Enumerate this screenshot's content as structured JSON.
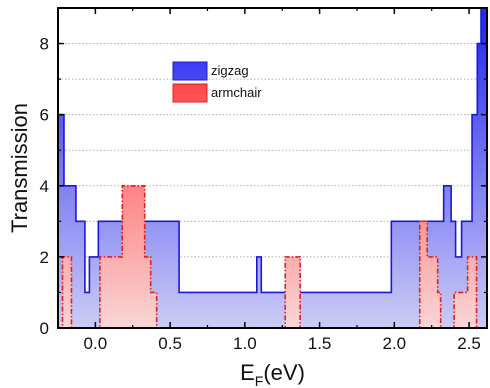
{
  "chart_data": {
    "type": "area",
    "xlabel": "E",
    "xlabel_sub": "F",
    "xlabel_suffix": "(eV)",
    "ylabel": "Transmission",
    "xlim": [
      -0.25,
      2.62
    ],
    "ylim": [
      0,
      9
    ],
    "x_ticks": [
      0.0,
      0.5,
      1.0,
      1.5,
      2.0,
      2.5
    ],
    "x_tick_labels": [
      "0.0",
      "0.5",
      "1.0",
      "1.5",
      "2.0",
      "2.5"
    ],
    "y_ticks": [
      0,
      2,
      4,
      6,
      8
    ],
    "y_tick_labels": [
      "0",
      "2",
      "4",
      "6",
      "8"
    ],
    "grid": "horizontal dotted",
    "legend_position": "top-center",
    "series": [
      {
        "name": "zigzag",
        "color": "#1a1ad6",
        "line_style": "solid",
        "fill_from": "#ccccf5",
        "fill_to": "#2b2bf0",
        "steps": [
          [
            -0.25,
            6
          ],
          [
            -0.21,
            4
          ],
          [
            -0.13,
            3
          ],
          [
            -0.07,
            1
          ],
          [
            -0.04,
            2
          ],
          [
            0.02,
            3
          ],
          [
            0.56,
            1
          ],
          [
            1.08,
            2
          ],
          [
            1.11,
            1
          ],
          [
            1.98,
            3
          ],
          [
            2.33,
            4
          ],
          [
            2.38,
            3
          ],
          [
            2.41,
            2
          ],
          [
            2.45,
            3
          ],
          [
            2.52,
            6
          ],
          [
            2.555,
            8
          ],
          [
            2.58,
            9
          ],
          [
            2.62,
            9
          ]
        ]
      },
      {
        "name": "armchair",
        "color": "#e02020",
        "line_style": "dash-dot",
        "fill_from": "#f9d6d6",
        "fill_to": "#ff2a2a",
        "steps": [
          [
            -0.25,
            0
          ],
          [
            -0.22,
            2
          ],
          [
            -0.16,
            0
          ],
          [
            0.03,
            2
          ],
          [
            0.18,
            4
          ],
          [
            0.33,
            2
          ],
          [
            0.37,
            1
          ],
          [
            0.41,
            0
          ],
          [
            1.27,
            2
          ],
          [
            1.37,
            0
          ],
          [
            2.17,
            3
          ],
          [
            2.22,
            2
          ],
          [
            2.29,
            1
          ],
          [
            2.31,
            0
          ],
          [
            2.4,
            1
          ],
          [
            2.49,
            2
          ],
          [
            2.55,
            0
          ],
          [
            2.62,
            0
          ]
        ]
      }
    ]
  }
}
